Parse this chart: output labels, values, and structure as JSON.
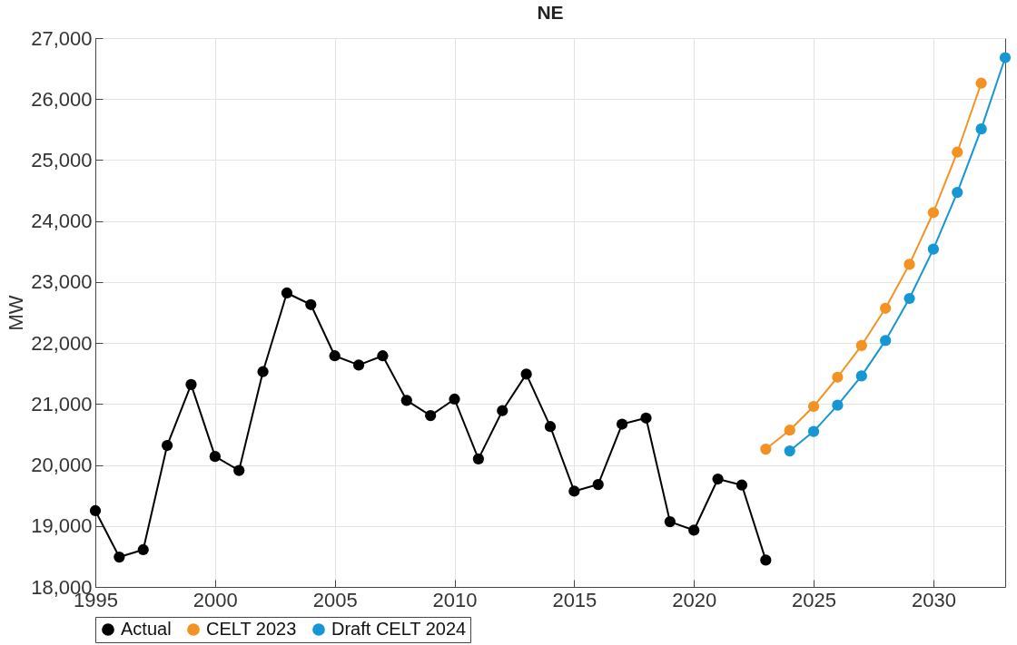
{
  "chart_data": {
    "type": "line",
    "title": "NE",
    "ylabel": "MW",
    "xlim": [
      1995,
      2033
    ],
    "xticks": [
      1995,
      2000,
      2005,
      2010,
      2015,
      2020,
      2025,
      2030
    ],
    "ylim": [
      18000,
      27000
    ],
    "yticks": [
      {
        "value": 18000,
        "label": "18,000"
      },
      {
        "value": 19000,
        "label": "19,000"
      },
      {
        "value": 20000,
        "label": "20,000"
      },
      {
        "value": 21000,
        "label": "21,000"
      },
      {
        "value": 22000,
        "label": "22,000"
      },
      {
        "value": 23000,
        "label": "23,000"
      },
      {
        "value": 24000,
        "label": "24,000"
      },
      {
        "value": 25000,
        "label": "25,000"
      },
      {
        "value": 26000,
        "label": "26,000"
      },
      {
        "value": 27000,
        "label": "27,000"
      }
    ],
    "grid": true,
    "legend": "bottom",
    "marker": "circle",
    "line_style": "solid",
    "series": [
      {
        "name": "Actual",
        "color": "#000000",
        "x": [
          1995,
          1996,
          1997,
          1998,
          1999,
          2000,
          2001,
          2002,
          2003,
          2004,
          2005,
          2006,
          2007,
          2008,
          2009,
          2010,
          2011,
          2012,
          2013,
          2014,
          2015,
          2016,
          2017,
          2018,
          2019,
          2020,
          2021,
          2022,
          2023
        ],
        "values": [
          19250,
          18490,
          18610,
          20320,
          21320,
          20140,
          19910,
          21530,
          22820,
          22630,
          21790,
          21640,
          21790,
          21060,
          20810,
          21080,
          20100,
          20890,
          21490,
          20630,
          19570,
          19680,
          20670,
          20770,
          19070,
          18930,
          19770,
          19670,
          18440
        ]
      },
      {
        "name": "CELT 2023",
        "color": "#f39223",
        "x": [
          2023,
          2024,
          2025,
          2026,
          2027,
          2028,
          2029,
          2030,
          2031,
          2032
        ],
        "values": [
          20260,
          20570,
          20960,
          21440,
          21960,
          22570,
          23290,
          24140,
          25130,
          26260
        ]
      },
      {
        "name": "Draft CELT 2024",
        "color": "#1696d2",
        "x": [
          2024,
          2025,
          2026,
          2027,
          2028,
          2029,
          2030,
          2031,
          2032,
          2033
        ],
        "values": [
          20230,
          20550,
          20980,
          21460,
          22040,
          22730,
          23540,
          24470,
          25510,
          26680
        ]
      }
    ]
  }
}
